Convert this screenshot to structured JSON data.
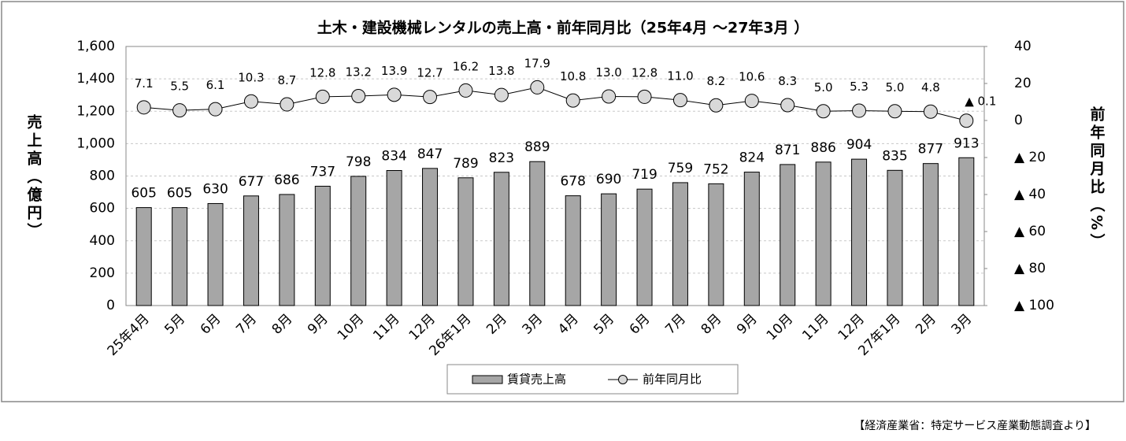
{
  "chart_data": {
    "type": "bar-line",
    "title": "土木・建設機械レンタルの売上高・前年同月比（25年4月 ～27年3月 ）",
    "y_label": "売上高（億円）",
    "y2_label": "前年同月比（%）",
    "source": "【経済産業省：特定サービス産業動態調査より】",
    "categories": [
      "25年4月",
      "5月",
      "6月",
      "7月",
      "8月",
      "9月",
      "10月",
      "11月",
      "12月",
      "26年1月",
      "2月",
      "3月",
      "4月",
      "5月",
      "6月",
      "7月",
      "8月",
      "9月",
      "10月",
      "11月",
      "12月",
      "27年1月",
      "2月",
      "3月"
    ],
    "series": [
      {
        "name": "賃貸売上高",
        "type": "bar",
        "color": "#a6a6a6",
        "values": [
          605,
          605,
          630,
          677,
          686,
          737,
          798,
          834,
          847,
          789,
          823,
          889,
          678,
          690,
          719,
          759,
          752,
          824,
          871,
          886,
          904,
          835,
          877,
          913
        ]
      },
      {
        "name": "前年同月比",
        "type": "line",
        "axis": "y2",
        "color": "#d9d9d9",
        "values": [
          7.1,
          5.5,
          6.1,
          10.3,
          8.7,
          12.8,
          13.2,
          13.9,
          12.7,
          16.2,
          13.8,
          17.9,
          10.8,
          13.0,
          12.8,
          11.0,
          8.2,
          10.6,
          8.3,
          5.0,
          5.3,
          5.0,
          4.8,
          -0.1
        ],
        "value_labels": [
          "7.1",
          "5.5",
          "6.1",
          "10.3",
          "8.7",
          "12.8",
          "13.2",
          "13.9",
          "12.7",
          "16.2",
          "13.8",
          "17.9",
          "10.8",
          "13.0",
          "12.8",
          "11.0",
          "8.2",
          "10.6",
          "8.3",
          "5.0",
          "5.3",
          "5.0",
          "4.8",
          "▲ 0.1"
        ]
      }
    ],
    "ylim": [
      0,
      1600
    ],
    "yticks": [
      0,
      200,
      400,
      600,
      800,
      {
        "value": 1000,
        "label": "1,000"
      },
      {
        "value": 1200,
        "label": "1,200"
      },
      {
        "value": 1400,
        "label": "1,400"
      },
      {
        "value": 1600,
        "label": "1,600"
      }
    ],
    "y2lim": [
      -100,
      40
    ],
    "y2ticks": [
      {
        "value": -100,
        "label": "▲ 100"
      },
      {
        "value": -80,
        "label": "▲ 80"
      },
      {
        "value": -60,
        "label": "▲ 60"
      },
      {
        "value": -40,
        "label": "▲ 40"
      },
      {
        "value": -20,
        "label": "▲ 20"
      },
      0,
      20,
      40
    ],
    "grid": true,
    "legend": "bottom"
  }
}
